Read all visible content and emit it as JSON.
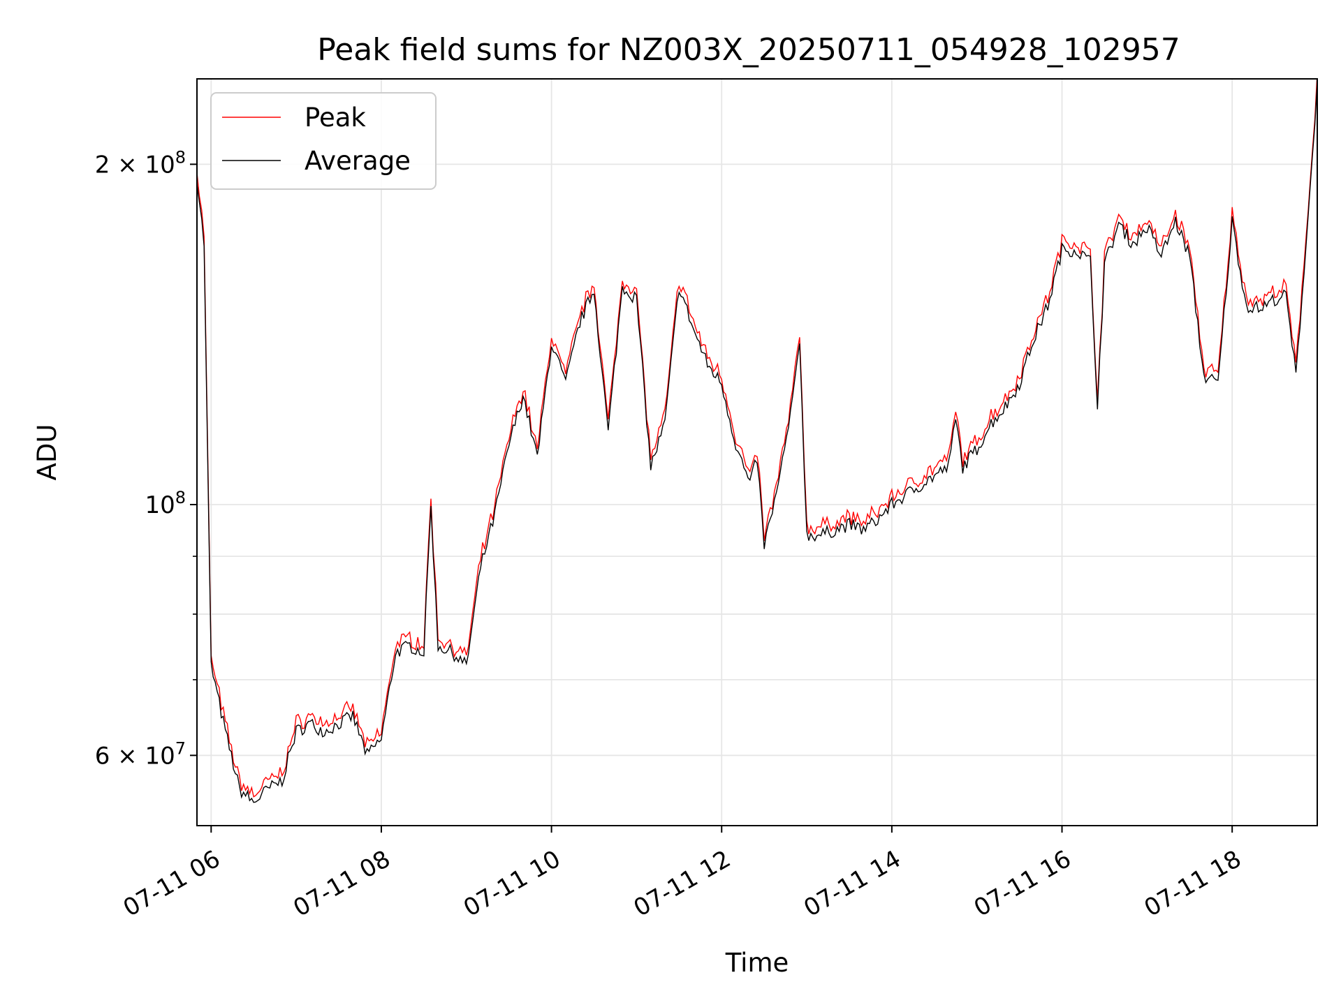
{
  "chart_data": {
    "type": "line",
    "title": "Peak field sums for NZ003X_20250711_054928_102957",
    "xlabel": "Time",
    "ylabel": "ADU",
    "y_scale": "log",
    "ylim": [
      52000000,
      238000000
    ],
    "xlim": [
      "2025-07-11 05:50",
      "2025-07-11 19:00"
    ],
    "grid": true,
    "legend_position": "upper left",
    "x_ticks": [
      "07-11 06",
      "07-11 08",
      "07-11 10",
      "07-11 12",
      "07-11 14",
      "07-11 16",
      "07-11 18"
    ],
    "y_ticks": [
      {
        "value": 200000000,
        "base": "2 × 10",
        "exp": "8"
      },
      {
        "value": 100000000,
        "base": "10",
        "exp": "8"
      },
      {
        "value": 60000000,
        "base": "6 × 10",
        "exp": "7"
      }
    ],
    "y_minor_ticks": [
      70000000,
      80000000,
      90000000
    ],
    "series": [
      {
        "name": "Peak",
        "color": "#ff0000"
      },
      {
        "name": "Average",
        "color": "#000000"
      }
    ],
    "x": [
      "2025-07-11 05:50",
      "2025-07-11 05:55",
      "2025-07-11 06:00",
      "2025-07-11 06:10",
      "2025-07-11 06:20",
      "2025-07-11 06:30",
      "2025-07-11 06:40",
      "2025-07-11 06:50",
      "2025-07-11 07:00",
      "2025-07-11 07:10",
      "2025-07-11 07:20",
      "2025-07-11 07:30",
      "2025-07-11 07:40",
      "2025-07-11 07:50",
      "2025-07-11 08:00",
      "2025-07-11 08:10",
      "2025-07-11 08:20",
      "2025-07-11 08:30",
      "2025-07-11 08:35",
      "2025-07-11 08:40",
      "2025-07-11 08:50",
      "2025-07-11 09:00",
      "2025-07-11 09:10",
      "2025-07-11 09:20",
      "2025-07-11 09:30",
      "2025-07-11 09:40",
      "2025-07-11 09:50",
      "2025-07-11 10:00",
      "2025-07-11 10:10",
      "2025-07-11 10:20",
      "2025-07-11 10:30",
      "2025-07-11 10:40",
      "2025-07-11 10:50",
      "2025-07-11 11:00",
      "2025-07-11 11:10",
      "2025-07-11 11:20",
      "2025-07-11 11:30",
      "2025-07-11 11:40",
      "2025-07-11 11:50",
      "2025-07-11 12:00",
      "2025-07-11 12:10",
      "2025-07-11 12:20",
      "2025-07-11 12:25",
      "2025-07-11 12:30",
      "2025-07-11 12:40",
      "2025-07-11 12:50",
      "2025-07-11 12:55",
      "2025-07-11 13:00",
      "2025-07-11 13:10",
      "2025-07-11 13:20",
      "2025-07-11 13:30",
      "2025-07-11 13:40",
      "2025-07-11 13:50",
      "2025-07-11 14:00",
      "2025-07-11 14:10",
      "2025-07-11 14:20",
      "2025-07-11 14:30",
      "2025-07-11 14:40",
      "2025-07-11 14:45",
      "2025-07-11 14:50",
      "2025-07-11 15:00",
      "2025-07-11 15:10",
      "2025-07-11 15:20",
      "2025-07-11 15:30",
      "2025-07-11 15:40",
      "2025-07-11 15:50",
      "2025-07-11 16:00",
      "2025-07-11 16:10",
      "2025-07-11 16:20",
      "2025-07-11 16:25",
      "2025-07-11 16:30",
      "2025-07-11 16:40",
      "2025-07-11 16:50",
      "2025-07-11 17:00",
      "2025-07-11 17:10",
      "2025-07-11 17:20",
      "2025-07-11 17:30",
      "2025-07-11 17:40",
      "2025-07-11 17:50",
      "2025-07-11 18:00",
      "2025-07-11 18:10",
      "2025-07-11 18:20",
      "2025-07-11 18:30",
      "2025-07-11 18:38",
      "2025-07-11 18:45",
      "2025-07-11 18:55",
      "2025-07-11 19:00"
    ],
    "values": [
      195000000,
      170000000,
      72000000,
      63000000,
      56000000,
      54500000,
      56000000,
      57000000,
      63000000,
      64000000,
      63000000,
      64000000,
      65000000,
      60000000,
      62000000,
      74000000,
      75000000,
      74000000,
      100000000,
      75000000,
      74000000,
      72000000,
      88000000,
      98000000,
      113000000,
      125000000,
      110000000,
      139000000,
      128000000,
      145000000,
      155000000,
      116000000,
      156000000,
      152000000,
      108000000,
      118000000,
      156000000,
      143000000,
      133000000,
      128000000,
      113000000,
      104000000,
      110000000,
      92000000,
      104000000,
      123000000,
      140000000,
      94000000,
      94000000,
      95000000,
      96000000,
      95000000,
      97000000,
      100000000,
      102000000,
      104000000,
      106000000,
      108000000,
      119000000,
      108000000,
      112000000,
      118000000,
      122000000,
      128000000,
      140000000,
      150000000,
      168000000,
      168000000,
      164000000,
      123000000,
      163000000,
      177000000,
      170000000,
      176000000,
      166000000,
      178000000,
      166000000,
      130000000,
      128000000,
      178000000,
      150000000,
      149000000,
      152000000,
      153000000,
      130000000,
      190000000,
      236000000
    ]
  }
}
